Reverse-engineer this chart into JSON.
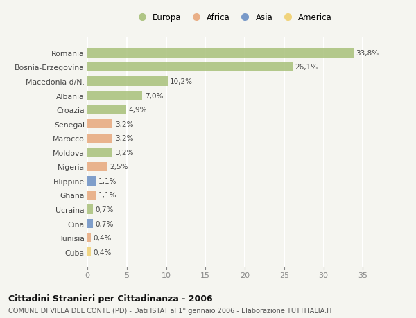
{
  "countries": [
    "Romania",
    "Bosnia-Erzegovina",
    "Macedonia d/N.",
    "Albania",
    "Croazia",
    "Senegal",
    "Marocco",
    "Moldova",
    "Nigeria",
    "Filippine",
    "Ghana",
    "Ucraina",
    "Cina",
    "Tunisia",
    "Cuba"
  ],
  "values": [
    33.8,
    26.1,
    10.2,
    7.0,
    4.9,
    3.2,
    3.2,
    3.2,
    2.5,
    1.1,
    1.1,
    0.7,
    0.7,
    0.4,
    0.4
  ],
  "labels": [
    "33,8%",
    "26,1%",
    "10,2%",
    "7,0%",
    "4,9%",
    "3,2%",
    "3,2%",
    "3,2%",
    "2,5%",
    "1,1%",
    "1,1%",
    "0,7%",
    "0,7%",
    "0,4%",
    "0,4%"
  ],
  "continents": [
    "Europa",
    "Europa",
    "Europa",
    "Europa",
    "Europa",
    "Africa",
    "Africa",
    "Europa",
    "Africa",
    "Asia",
    "Africa",
    "Europa",
    "Asia",
    "Africa",
    "America"
  ],
  "colors": {
    "Europa": "#a8c07a",
    "Africa": "#e8a87c",
    "Asia": "#6b8fc4",
    "America": "#f0d070"
  },
  "legend_order": [
    "Europa",
    "Africa",
    "Asia",
    "America"
  ],
  "title": "Cittadini Stranieri per Cittadinanza - 2006",
  "subtitle": "COMUNE DI VILLA DEL CONTE (PD) - Dati ISTAT al 1° gennaio 2006 - Elaborazione TUTTITALIA.IT",
  "xlim": [
    0,
    37
  ],
  "xticks": [
    0,
    5,
    10,
    15,
    20,
    25,
    30,
    35
  ],
  "background_color": "#f5f5f0",
  "grid_color": "#ffffff",
  "bar_height": 0.65
}
